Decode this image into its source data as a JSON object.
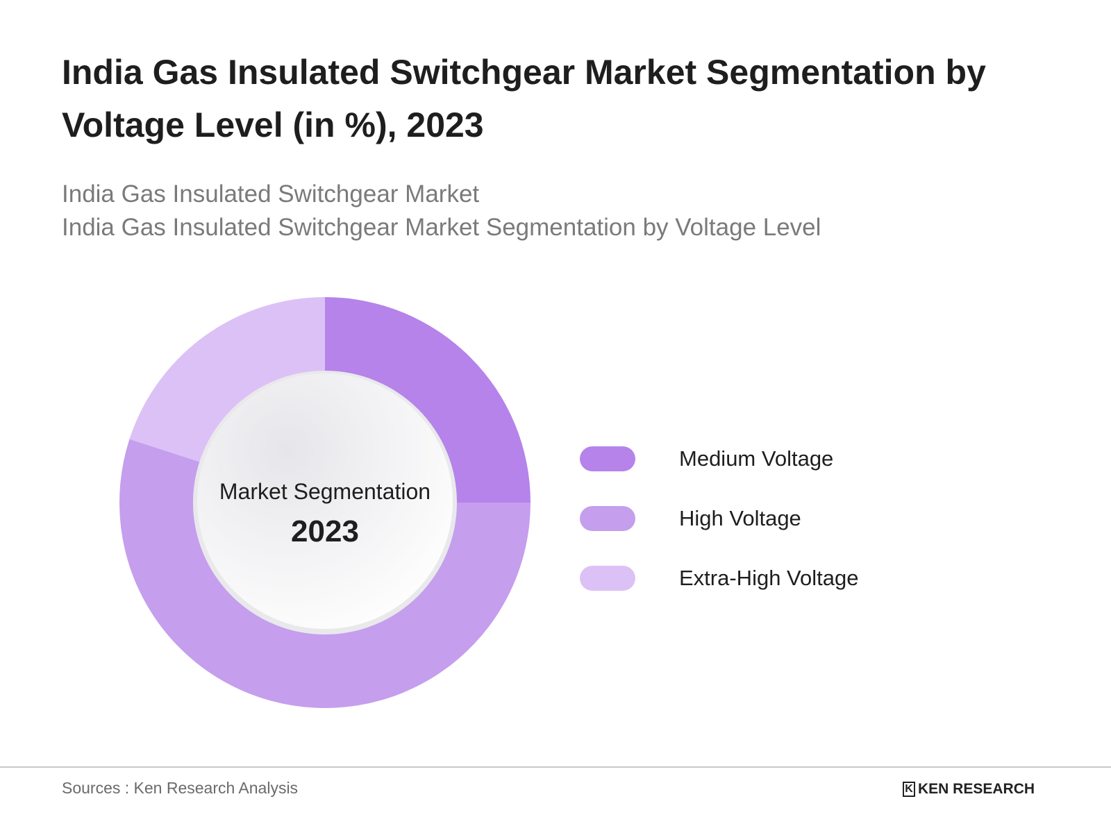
{
  "title": "India Gas Insulated Switchgear Market Segmentation by Voltage Level (in %), 2023",
  "subtitle_lines": [
    "India Gas Insulated Switchgear Market",
    "India Gas Insulated Switchgear Market Segmentation by Voltage Level"
  ],
  "chart_data": {
    "type": "pie",
    "variant": "donut",
    "title": "India Gas Insulated Switchgear Market Segmentation by Voltage Level (in %), 2023",
    "center_label": "Market Segmentation",
    "center_value": "2023",
    "categories": [
      "Medium Voltage",
      "High Voltage",
      "Extra-High Voltage"
    ],
    "values": [
      25,
      55,
      20
    ],
    "colors": [
      "#b583ea",
      "#c59eee",
      "#dcc1f6"
    ],
    "legend_position": "right"
  },
  "footer": {
    "source": "Sources : Ken Research Analysis",
    "logo_text": "KEN RESEARCH",
    "logo_mark": "K"
  }
}
